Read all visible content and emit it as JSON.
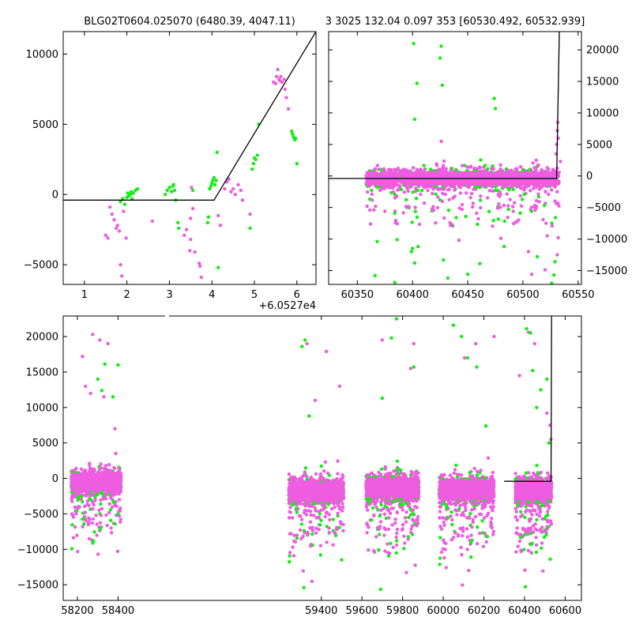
{
  "colors": {
    "magenta": "#ee5ce0",
    "green": "#11ee11",
    "model": "#000000"
  },
  "chart_data": [
    {
      "panel": "top-left",
      "type": "scatter",
      "title": "BLG02T0604.025070 (6480.39, 4047.11)",
      "offset_label": "+6.0527e4",
      "xlim": [
        0.5,
        6.45
      ],
      "ylim": [
        -6400,
        11600
      ],
      "xticks": [
        1,
        2,
        3,
        4,
        5,
        6
      ],
      "xtick_labels": [
        "1",
        "2",
        "3",
        "4",
        "5",
        "6"
      ],
      "yticks": [
        -5000,
        0,
        5000,
        10000
      ],
      "ytick_labels": [
        "−5000",
        "0",
        "5000",
        "10000"
      ],
      "model_line": [
        [
          0.5,
          -400
        ],
        [
          4.05,
          -400
        ],
        [
          6.45,
          11600
        ]
      ],
      "series": [
        {
          "color": "magenta",
          "points": [
            [
              1.5,
              -2900
            ],
            [
              1.55,
              -3100
            ],
            [
              1.6,
              -900
            ],
            [
              1.65,
              -1400
            ],
            [
              1.7,
              -1800
            ],
            [
              1.75,
              -2400
            ],
            [
              1.78,
              -2200
            ],
            [
              1.82,
              -2600
            ],
            [
              1.85,
              -5000
            ],
            [
              1.88,
              -5800
            ],
            [
              1.92,
              -1200
            ],
            [
              1.98,
              -3100
            ],
            [
              2.6,
              -1900
            ],
            [
              3.35,
              -2900
            ],
            [
              3.4,
              -2500
            ],
            [
              3.5,
              -1700
            ],
            [
              3.52,
              500
            ],
            [
              3.55,
              -1000
            ],
            [
              3.48,
              -4000
            ],
            [
              3.5,
              -3200
            ],
            [
              3.6,
              -4100
            ],
            [
              3.7,
              -4900
            ],
            [
              3.72,
              -5100
            ],
            [
              3.75,
              -5900
            ],
            [
              4.15,
              -1500
            ],
            [
              4.2,
              -2200
            ],
            [
              4.3,
              400
            ],
            [
              4.35,
              900
            ],
            [
              4.4,
              1100
            ],
            [
              4.45,
              200
            ],
            [
              4.5,
              400
            ],
            [
              4.55,
              0
            ],
            [
              4.62,
              700
            ],
            [
              4.68,
              300
            ],
            [
              4.72,
              -400
            ],
            [
              4.9,
              -1400
            ],
            [
              5.45,
              8000
            ],
            [
              5.5,
              7900
            ],
            [
              5.52,
              8400
            ],
            [
              5.55,
              8900
            ],
            [
              5.58,
              8200
            ],
            [
              5.6,
              8100
            ],
            [
              5.62,
              8400
            ],
            [
              5.65,
              8000
            ],
            [
              5.7,
              8200
            ],
            [
              5.72,
              7500
            ],
            [
              5.75,
              6900
            ],
            [
              5.8,
              6100
            ]
          ]
        },
        {
          "color": "green",
          "points": [
            [
              1.85,
              -500
            ],
            [
              1.9,
              -300
            ],
            [
              1.95,
              -700
            ],
            [
              2.0,
              -200
            ],
            [
              2.02,
              100
            ],
            [
              2.05,
              -100
            ],
            [
              2.08,
              0
            ],
            [
              2.1,
              200
            ],
            [
              2.12,
              -300
            ],
            [
              2.15,
              100
            ],
            [
              2.2,
              300
            ],
            [
              2.25,
              400
            ],
            [
              2.9,
              0
            ],
            [
              2.95,
              300
            ],
            [
              3.0,
              500
            ],
            [
              3.05,
              200
            ],
            [
              3.08,
              600
            ],
            [
              3.1,
              700
            ],
            [
              3.12,
              300
            ],
            [
              3.15,
              -400
            ],
            [
              3.2,
              -2000
            ],
            [
              3.22,
              -2400
            ],
            [
              3.55,
              300
            ],
            [
              3.9,
              -2000
            ],
            [
              3.92,
              -1600
            ],
            [
              3.95,
              400
            ],
            [
              3.98,
              600
            ],
            [
              4.0,
              800
            ],
            [
              4.02,
              1000
            ],
            [
              4.05,
              1200
            ],
            [
              4.07,
              700
            ],
            [
              4.1,
              1000
            ],
            [
              4.12,
              3000
            ],
            [
              4.15,
              -5200
            ],
            [
              4.9,
              -2400
            ],
            [
              4.95,
              1800
            ],
            [
              4.98,
              2200
            ],
            [
              5.0,
              2600
            ],
            [
              5.03,
              2500
            ],
            [
              5.07,
              2800
            ],
            [
              5.1,
              5000
            ],
            [
              5.88,
              4500
            ],
            [
              5.9,
              4300
            ],
            [
              5.92,
              4100
            ],
            [
              5.95,
              3900
            ],
            [
              5.97,
              4000
            ],
            [
              6.0,
              2200
            ]
          ]
        }
      ]
    },
    {
      "panel": "top-right",
      "type": "scatter",
      "title": "3 3025 132.04 0.097 353 [60530.492, 60532.939]",
      "xlim": [
        60324,
        60553
      ],
      "ylim": [
        -17200,
        22900
      ],
      "xticks": [
        60350,
        60400,
        60450,
        60500,
        60550
      ],
      "xtick_labels": [
        "60350",
        "60400",
        "60450",
        "60500",
        "60550"
      ],
      "yticks": [
        -15000,
        -10000,
        -5000,
        0,
        5000,
        10000,
        15000,
        20000
      ],
      "ytick_labels": [
        "−15000",
        "−10000",
        "−5000",
        "0",
        "5000",
        "10000",
        "15000",
        "20000"
      ],
      "model_line": [
        [
          60324,
          -400
        ],
        [
          60530.5,
          -400
        ],
        [
          60532.94,
          22900
        ]
      ],
      "band": {
        "x_start": 60358,
        "x_end": 60533,
        "y_center": -400,
        "y_half": 1500,
        "tail_min": -8000
      },
      "outliers": {
        "green": [
          [
            60401,
            21000
          ],
          [
            60402,
            9000
          ],
          [
            60404,
            14700
          ],
          [
            60425,
            18700
          ],
          [
            60426,
            20600
          ],
          [
            60427,
            14400
          ],
          [
            60474,
            12300
          ],
          [
            60475,
            10700
          ],
          [
            60399,
            -12000
          ],
          [
            60400,
            -11500
          ],
          [
            60402,
            -13800
          ],
          [
            60405,
            -11200
          ],
          [
            60368,
            -10400
          ],
          [
            60366,
            -15800
          ],
          [
            60386,
            -10100
          ],
          [
            60428,
            -13300
          ],
          [
            60432,
            -16200
          ],
          [
            60461,
            -13900
          ],
          [
            60450,
            -15600
          ],
          [
            60384,
            -16900
          ],
          [
            60526,
            -17000
          ],
          [
            60513,
            -12800
          ],
          [
            60483,
            -11200
          ],
          [
            60528,
            -15700
          ],
          [
            60529,
            -13600
          ]
        ],
        "magenta": [
          [
            60426,
            5500
          ],
          [
            60512,
            2500
          ],
          [
            60530.5,
            5000
          ],
          [
            60531,
            7200
          ],
          [
            60531.5,
            8500
          ],
          [
            60532,
            6000
          ],
          [
            60530,
            3500
          ],
          [
            60531,
            -2500
          ],
          [
            60532,
            -9800
          ],
          [
            60522,
            -9500
          ],
          [
            60531,
            -12500
          ],
          [
            60520,
            -14900
          ],
          [
            60534,
            2300
          ],
          [
            60480,
            -9900
          ],
          [
            60442,
            -10200
          ],
          [
            60505,
            -12000
          ],
          [
            60508,
            -15600
          ]
        ]
      }
    },
    {
      "panel": "bottom",
      "type": "scatter",
      "xlim": [
        58130,
        60680
      ],
      "ylim": [
        -17200,
        22900
      ],
      "xticks": [
        58200,
        58400,
        59400,
        59600,
        59800,
        60000,
        60200,
        60400,
        60600
      ],
      "xtick_labels": [
        "58200",
        "58400",
        "59400",
        "59600",
        "59800",
        "60000",
        "60200",
        "60400",
        "60600"
      ],
      "yticks": [
        -15000,
        -10000,
        -5000,
        0,
        5000,
        10000,
        15000,
        20000
      ],
      "ytick_labels": [
        "−15000",
        "−10000",
        "−5000",
        "0",
        "5000",
        "10000",
        "15000",
        "20000"
      ],
      "model_line": [
        [
          60300,
          -400
        ],
        [
          60530.5,
          -400
        ],
        [
          60532.94,
          22900
        ]
      ],
      "seasons": [
        {
          "x_start": 58170,
          "x_end": 58415,
          "y_center": -500,
          "y_half": 1700
        },
        {
          "x_start": 59240,
          "x_end": 59510,
          "y_center": -1800,
          "y_half": 1800
        },
        {
          "x_start": 59620,
          "x_end": 59880,
          "y_center": -1300,
          "y_half": 1900
        },
        {
          "x_start": 59980,
          "x_end": 60250,
          "y_center": -1600,
          "y_half": 1900
        },
        {
          "x_start": 60355,
          "x_end": 60533,
          "y_center": -1700,
          "y_half": 1800
        }
      ],
      "outliers": {
        "magenta": [
          [
            58275,
            20300
          ],
          [
            58310,
            19500
          ],
          [
            58350,
            19000
          ],
          [
            58225,
            17200
          ],
          [
            58240,
            13000
          ],
          [
            58265,
            12000
          ],
          [
            58330,
            11500
          ],
          [
            58385,
            7000
          ],
          [
            59425,
            17900
          ],
          [
            59330,
            19000
          ],
          [
            59490,
            13000
          ],
          [
            59700,
            19500
          ],
          [
            59840,
            15500
          ],
          [
            59855,
            19000
          ],
          [
            60105,
            17000
          ],
          [
            60160,
            19000
          ],
          [
            60250,
            20000
          ],
          [
            60420,
            20600
          ],
          [
            60450,
            19000
          ],
          [
            60375,
            14500
          ],
          [
            59370,
            11000
          ],
          [
            60510,
            9200
          ],
          [
            60525,
            7500
          ],
          [
            60530,
            5500
          ],
          [
            59420,
            2300
          ]
        ],
        "green": [
          [
            58335,
            16100
          ],
          [
            58400,
            16000
          ],
          [
            58300,
            14000
          ],
          [
            58320,
            12400
          ],
          [
            58375,
            11500
          ],
          [
            59320,
            19500
          ],
          [
            59305,
            18600
          ],
          [
            59770,
            22500
          ],
          [
            59745,
            19800
          ],
          [
            59855,
            15700
          ],
          [
            60120,
            17000
          ],
          [
            60090,
            20000
          ],
          [
            60050,
            21600
          ],
          [
            60165,
            15700
          ],
          [
            60410,
            21100
          ],
          [
            60430,
            20500
          ],
          [
            60440,
            15200
          ],
          [
            60510,
            14000
          ],
          [
            60480,
            12500
          ],
          [
            60460,
            10000
          ],
          [
            59340,
            8800
          ],
          [
            59700,
            11300
          ],
          [
            60210,
            7400
          ],
          [
            60520,
            5000
          ]
        ]
      }
    }
  ]
}
